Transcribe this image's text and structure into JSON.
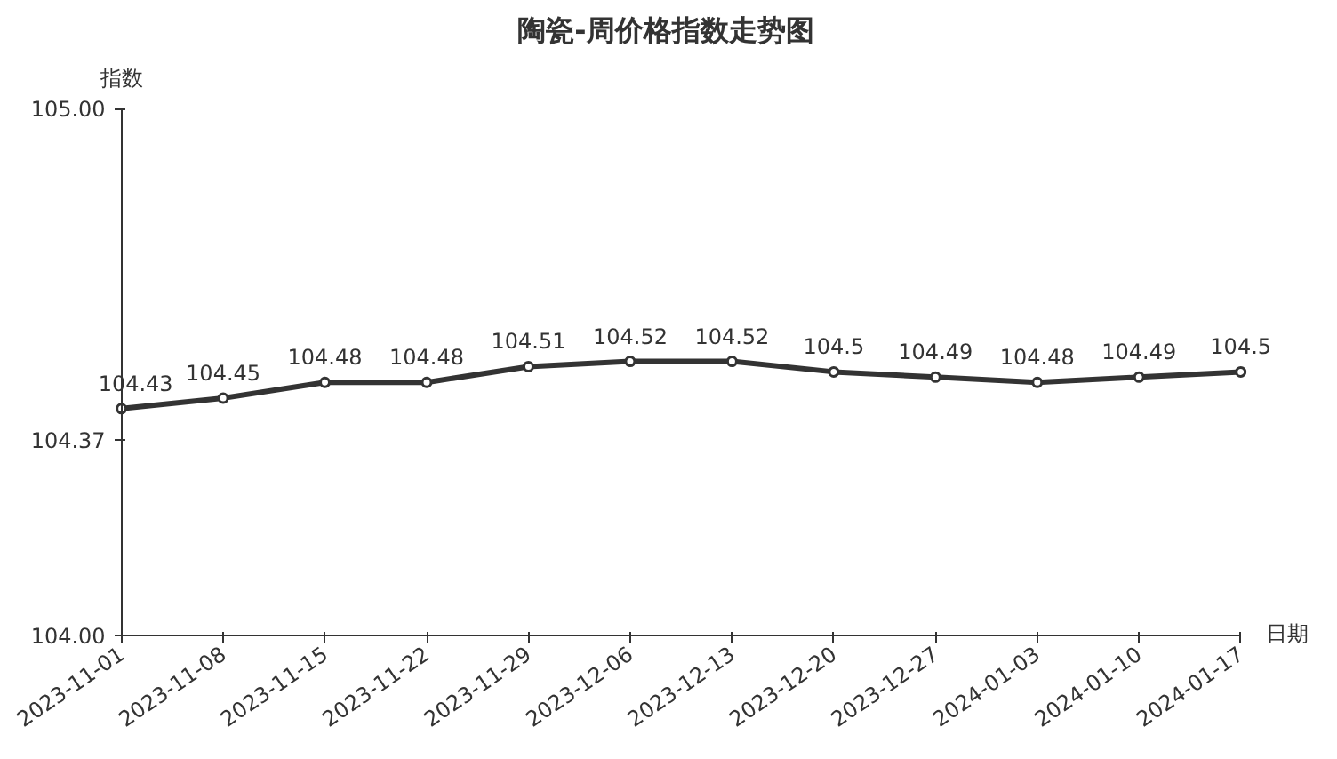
{
  "chart_data": {
    "type": "line",
    "title": "陶瓷-周价格指数走势图",
    "xlabel": "日期",
    "ylabel": "指数",
    "categories": [
      "2023-11-01",
      "2023-11-08",
      "2023-11-15",
      "2023-11-22",
      "2023-11-29",
      "2023-12-06",
      "2023-12-13",
      "2023-12-20",
      "2023-12-27",
      "2024-01-03",
      "2024-01-10",
      "2024-01-17"
    ],
    "series": [
      {
        "color": "#333333",
        "values": [
          104.43,
          104.45,
          104.48,
          104.48,
          104.51,
          104.52,
          104.52,
          104.5,
          104.49,
          104.48,
          104.49,
          104.5
        ]
      }
    ],
    "ylim": [
      104.0,
      105.0
    ],
    "yticks": [
      {
        "value": 104.0,
        "label": "104.00"
      },
      {
        "value": 104.37,
        "label": "104.37"
      },
      {
        "value": 105.0,
        "label": "105.00"
      }
    ],
    "data_labels": true,
    "marker": "circle",
    "line_style": "solid",
    "grid": false
  }
}
